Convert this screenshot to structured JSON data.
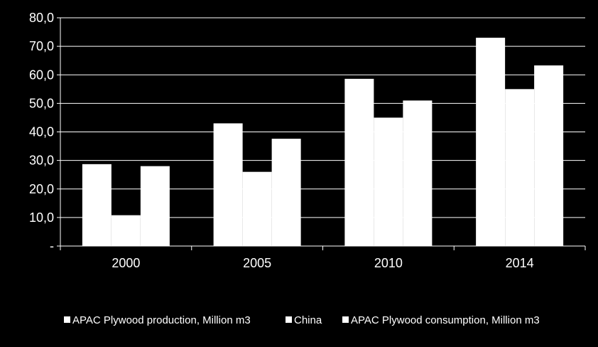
{
  "chart_data": {
    "type": "bar",
    "title": "",
    "xlabel": "",
    "ylabel": "",
    "categories": [
      "2000",
      "2005",
      "2010",
      "2014"
    ],
    "series": [
      {
        "name": "APAC Plywood production, Million m3",
        "values": [
          28.7,
          43.0,
          58.6,
          73.0
        ],
        "color": "#ffffff"
      },
      {
        "name": "China",
        "values": [
          10.8,
          26.0,
          45.0,
          55.0
        ],
        "color": "#ffffff"
      },
      {
        "name": "APAC Plywood consumption, Million m3",
        "values": [
          28.0,
          37.6,
          51.0,
          63.3
        ],
        "color": "#ffffff"
      }
    ],
    "ylim": [
      0,
      80
    ],
    "yticks": [
      0,
      10,
      20,
      30,
      40,
      50,
      60,
      70,
      80
    ],
    "ytick_labels": [
      "-",
      "10,0",
      "20,0",
      "30,0",
      "40,0",
      "50,0",
      "60,0",
      "70,0",
      "80,0"
    ],
    "grid": true,
    "legend_position": "bottom",
    "colors": {
      "background": "#000000",
      "bars": "#ffffff",
      "gridlines": "#ffffff",
      "text": "#ffffff"
    }
  }
}
